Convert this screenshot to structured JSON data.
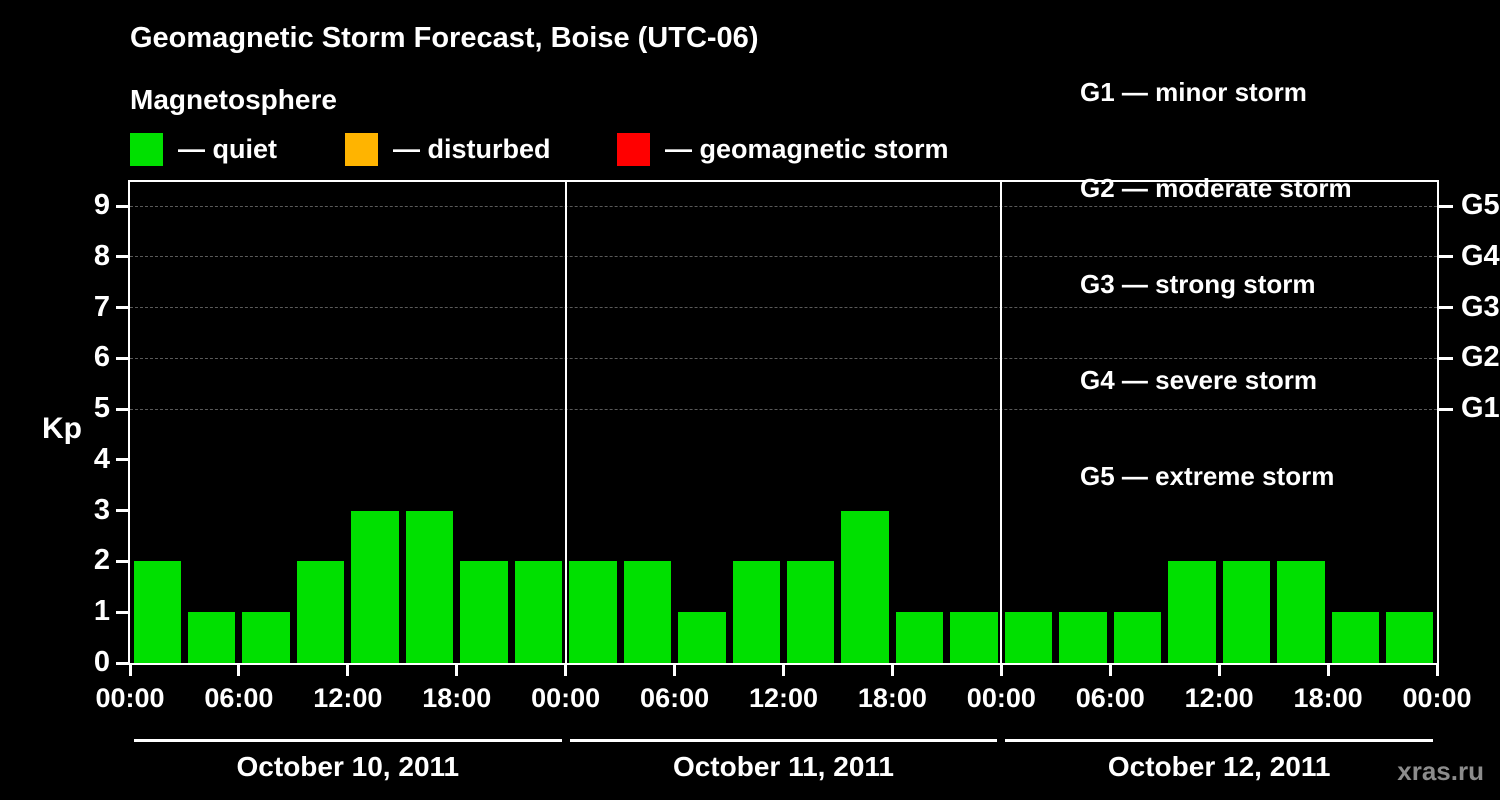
{
  "title": "Geomagnetic Storm Forecast, Boise (UTC-06)",
  "subtitle": "Magnetosphere",
  "legend": {
    "items": [
      {
        "label": "— quiet",
        "color": "#00e000"
      },
      {
        "label": "— disturbed",
        "color": "#ffb400"
      },
      {
        "label": "— geomagnetic storm",
        "color": "#ff0000"
      }
    ]
  },
  "g_legend": {
    "lines": [
      "G1 — minor storm",
      "G2 — moderate storm",
      "G3 — strong storm",
      "G4 — severe storm",
      "G5 — extreme storm"
    ]
  },
  "watermark": "xras.ru",
  "chart_data": {
    "type": "bar",
    "title": "Geomagnetic Storm Forecast, Boise (UTC-06)",
    "ylabel": "Kp",
    "ylim": [
      0,
      9
    ],
    "yticks": [
      0,
      1,
      2,
      3,
      4,
      5,
      6,
      7,
      8,
      9
    ],
    "right_axis": [
      {
        "kp": 5,
        "label": "G1"
      },
      {
        "kp": 6,
        "label": "G2"
      },
      {
        "kp": 7,
        "label": "G3"
      },
      {
        "kp": 8,
        "label": "G4"
      },
      {
        "kp": 9,
        "label": "G5"
      }
    ],
    "gridlines_kp": [
      5,
      6,
      7,
      8,
      9
    ],
    "interval_hours": 3,
    "x_tick_labels_per_day": [
      "00:00",
      "06:00",
      "12:00",
      "18:00"
    ],
    "final_x_tick_label": "00:00",
    "bar_color": "#00e000",
    "grid": true,
    "legend_position": "top",
    "days": [
      {
        "date": "October 10, 2011",
        "values": [
          2,
          1,
          1,
          2,
          3,
          3,
          2,
          2
        ]
      },
      {
        "date": "October 11, 2011",
        "values": [
          2,
          2,
          1,
          2,
          2,
          3,
          1,
          1
        ]
      },
      {
        "date": "October 12, 2011",
        "values": [
          1,
          1,
          1,
          2,
          2,
          2,
          1,
          1
        ]
      }
    ]
  }
}
